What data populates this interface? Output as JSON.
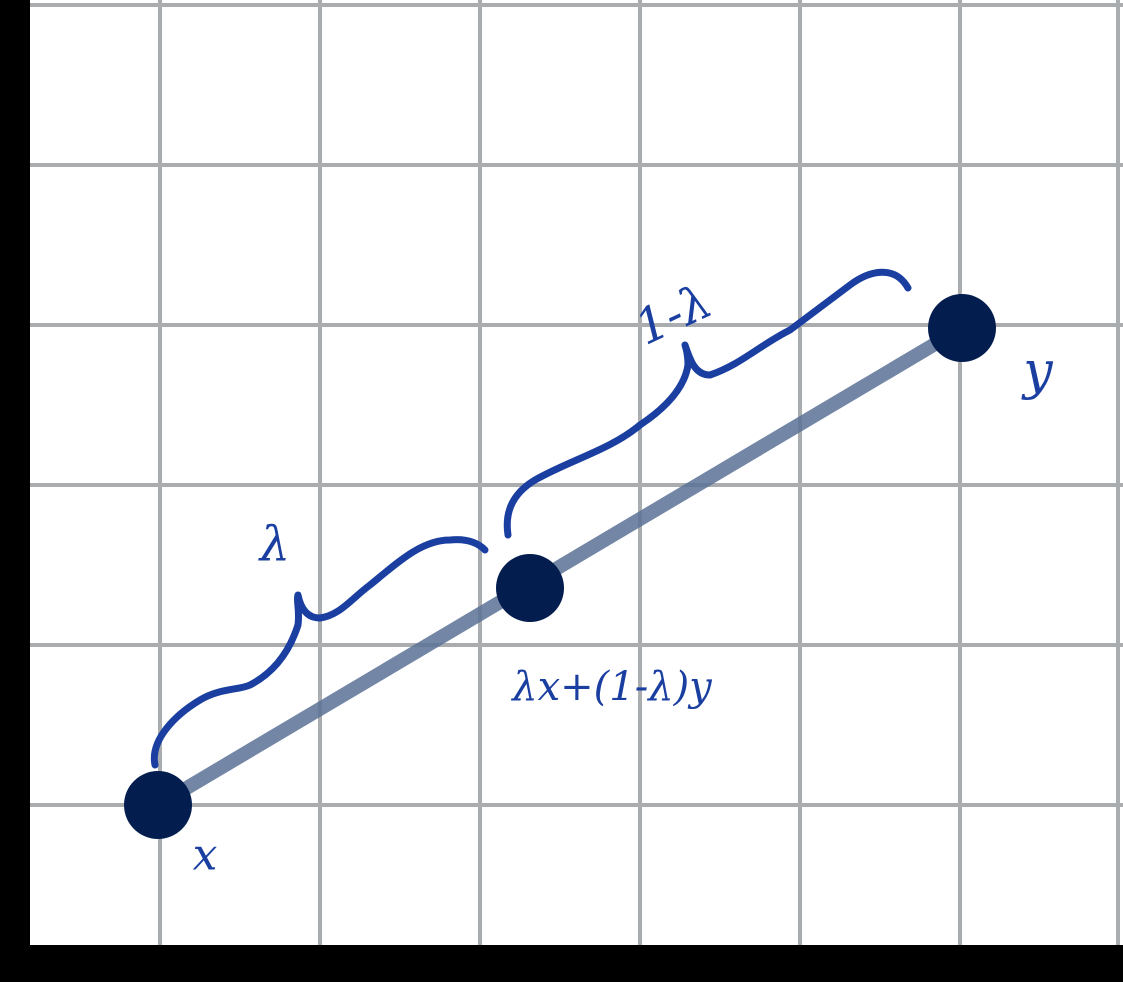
{
  "nodes": [
    {
      "label": "x"
    },
    {
      "label": "λx+(1-λ)y"
    },
    {
      "label": "y"
    }
  ],
  "braces": [
    {
      "label": "λ"
    },
    {
      "label": "1-λ"
    }
  ]
}
